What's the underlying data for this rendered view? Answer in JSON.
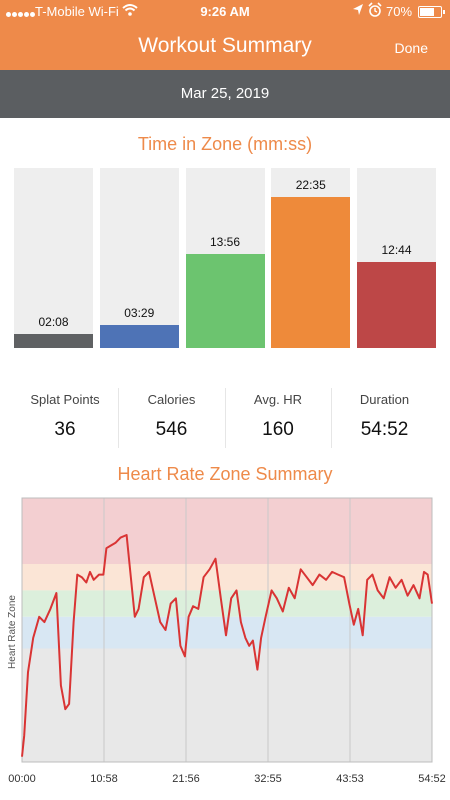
{
  "status_bar": {
    "carrier": "T-Mobile Wi-Fi",
    "time": "9:26 AM",
    "battery_pct": "70%",
    "battery_level": 0.7
  },
  "nav": {
    "title": "Workout Summary",
    "done_label": "Done"
  },
  "date": "Mar 25, 2019",
  "zones": {
    "title": "Time in Zone (mm:ss)",
    "items": [
      {
        "label": "02:08",
        "fraction": 0.08,
        "color": "#5f6163"
      },
      {
        "label": "03:29",
        "fraction": 0.13,
        "color": "#4e73b6"
      },
      {
        "label": "13:56",
        "fraction": 0.52,
        "color": "#6cc46f"
      },
      {
        "label": "22:35",
        "fraction": 0.84,
        "color": "#ee8a3a"
      },
      {
        "label": "12:44",
        "fraction": 0.475,
        "color": "#bd4747"
      }
    ]
  },
  "stats": [
    {
      "label": "Splat Points",
      "value": "36"
    },
    {
      "label": "Calories",
      "value": "546"
    },
    {
      "label": "Avg. HR",
      "value": "160"
    },
    {
      "label": "Duration",
      "value": "54:52"
    }
  ],
  "chart_data": {
    "type": "line",
    "title": "Heart Rate Zone Summary",
    "ylabel": "Heart Rate Zone",
    "xlabel": "",
    "x_tick_labels": [
      "00:00",
      "10:58",
      "21:56",
      "32:55",
      "43:53",
      "54:52"
    ],
    "xlim": [
      0,
      54.87
    ],
    "ylim": [
      0,
      1
    ],
    "grid": true,
    "line_color": "#d93434",
    "zone_bands": [
      {
        "zone": "red",
        "from": 0.75,
        "to": 1.0,
        "color": "#f3cfd1"
      },
      {
        "zone": "orange",
        "from": 0.65,
        "to": 0.75,
        "color": "#fbe5d6"
      },
      {
        "zone": "green",
        "from": 0.55,
        "to": 0.65,
        "color": "#dcefdc"
      },
      {
        "zone": "blue",
        "from": 0.43,
        "to": 0.55,
        "color": "#d8e7f3"
      },
      {
        "zone": "gray",
        "from": 0.0,
        "to": 0.43,
        "color": "#e8e8e8"
      }
    ],
    "series": [
      {
        "x": [
          0.0,
          0.3,
          0.8,
          1.5,
          2.3,
          3.0,
          3.8,
          4.6,
          5.2,
          5.8,
          6.3,
          6.9,
          7.4,
          8.0,
          8.6,
          9.1,
          9.6,
          10.3,
          10.9,
          11.3,
          11.9,
          12.5,
          13.2,
          14.0,
          14.6,
          15.1,
          15.6,
          16.3,
          17.0,
          17.7,
          18.5,
          19.2,
          19.9,
          20.6,
          21.2,
          21.8,
          22.3,
          22.9,
          23.6,
          24.3,
          25.1,
          25.9,
          26.6,
          27.3,
          28.0,
          28.7,
          29.3,
          29.9,
          30.4,
          30.9,
          31.5,
          32.0,
          32.6,
          33.4,
          34.1,
          34.9,
          35.7,
          36.5,
          37.3,
          38.1,
          38.9,
          39.8,
          40.7,
          41.5,
          42.3,
          43.1,
          43.8,
          44.4,
          45.0,
          45.6,
          46.2,
          46.9,
          47.6,
          48.4,
          49.2,
          50.0,
          50.8,
          51.6,
          52.4,
          53.2,
          53.8,
          54.3,
          54.87
        ],
        "y": [
          0.02,
          0.1,
          0.34,
          0.47,
          0.55,
          0.53,
          0.58,
          0.64,
          0.29,
          0.2,
          0.22,
          0.53,
          0.71,
          0.7,
          0.68,
          0.72,
          0.69,
          0.71,
          0.71,
          0.81,
          0.82,
          0.83,
          0.85,
          0.86,
          0.69,
          0.55,
          0.58,
          0.7,
          0.72,
          0.63,
          0.53,
          0.5,
          0.6,
          0.62,
          0.44,
          0.4,
          0.55,
          0.59,
          0.58,
          0.7,
          0.73,
          0.77,
          0.62,
          0.48,
          0.62,
          0.65,
          0.53,
          0.47,
          0.44,
          0.46,
          0.35,
          0.47,
          0.55,
          0.65,
          0.62,
          0.57,
          0.66,
          0.62,
          0.73,
          0.7,
          0.67,
          0.71,
          0.69,
          0.72,
          0.71,
          0.7,
          0.6,
          0.52,
          0.58,
          0.48,
          0.69,
          0.71,
          0.65,
          0.62,
          0.7,
          0.66,
          0.69,
          0.63,
          0.67,
          0.62,
          0.72,
          0.71,
          0.6
        ]
      }
    ]
  }
}
